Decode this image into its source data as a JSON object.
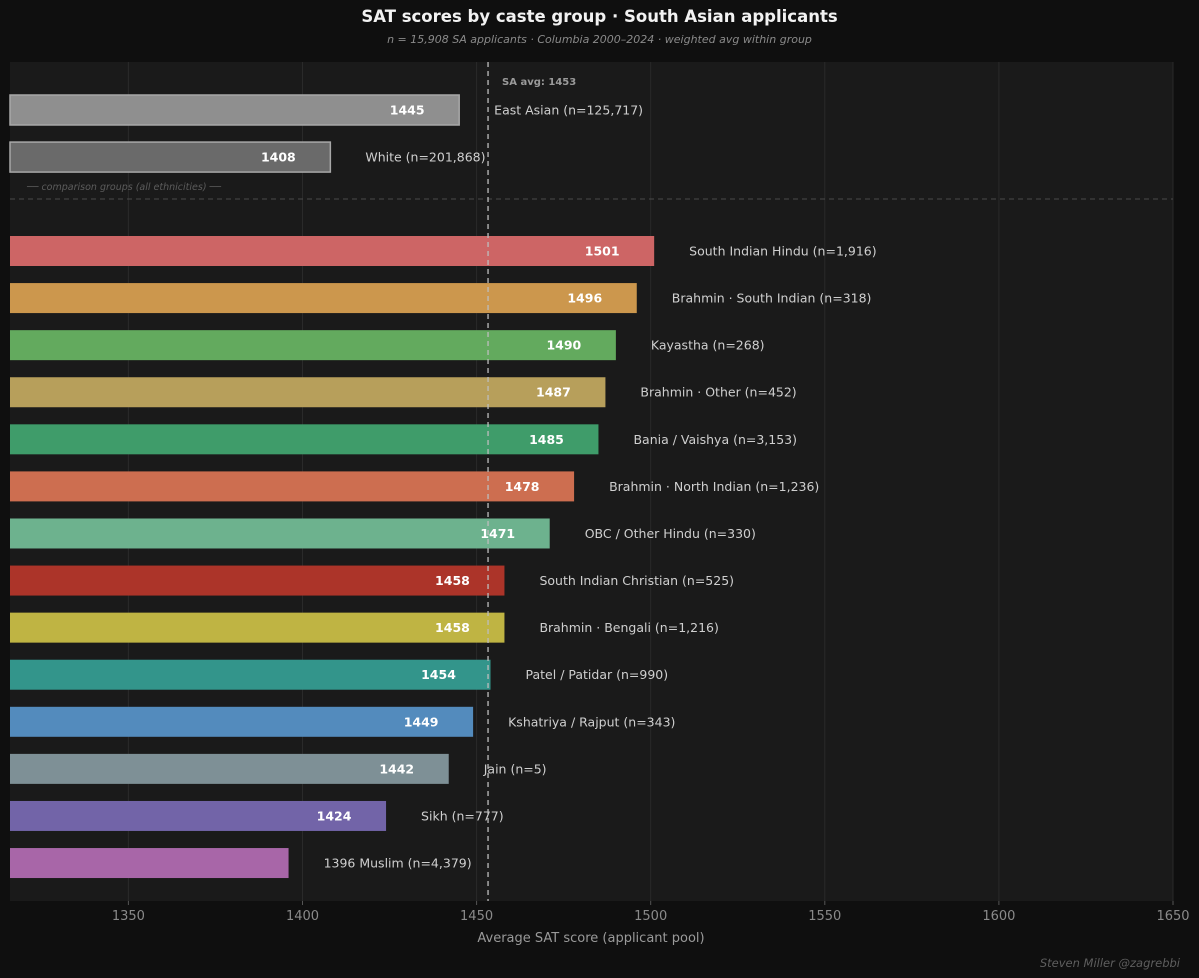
{
  "chart_data": {
    "type": "bar",
    "orientation": "horizontal",
    "title": "SAT scores by caste group · South Asian applicants",
    "subtitle": "n = 15,908 SA applicants · Columbia 2000–2024 · weighted avg within group",
    "xlabel": "Average SAT score (applicant pool)",
    "ylabel": "",
    "xlim": [
      1316,
      1650
    ],
    "xticks": [
      1350,
      1400,
      1450,
      1500,
      1550,
      1600,
      1650
    ],
    "reference_line": {
      "value": 1453,
      "label": "SA avg: 1453"
    },
    "comparison_note": "── comparison groups (all ethnicities) ──",
    "comparison_groups": [
      {
        "label": "East Asian  (n=125,717)",
        "value": 1445,
        "value_label": "1445",
        "color": "#8f8f8f"
      },
      {
        "label": "White  (n=201,868)",
        "value": 1408,
        "value_label": "1408",
        "color": "#6a6a6a"
      }
    ],
    "groups": [
      {
        "label": "South Indian Hindu  (n=1,916)",
        "value": 1501,
        "value_label": "1501",
        "color": "#cd6565"
      },
      {
        "label": "Brahmin · South Indian  (n=318)",
        "value": 1496,
        "value_label": "1496",
        "color": "#cc974d"
      },
      {
        "label": "Kayastha  (n=268)",
        "value": 1490,
        "value_label": "1490",
        "color": "#63aa5e"
      },
      {
        "label": "Brahmin · Other  (n=452)",
        "value": 1487,
        "value_label": "1487",
        "color": "#b79f5b"
      },
      {
        "label": "Bania / Vaishya  (n=3,153)",
        "value": 1485,
        "value_label": "1485",
        "color": "#3f9c6a"
      },
      {
        "label": "Brahmin · North Indian  (n=1,236)",
        "value": 1478,
        "value_label": "1478",
        "color": "#cd6e50"
      },
      {
        "label": "OBC / Other Hindu  (n=330)",
        "value": 1471,
        "value_label": "1471",
        "color": "#6db28e"
      },
      {
        "label": "South Indian Christian  (n=525)",
        "value": 1458,
        "value_label": "1458",
        "color": "#ac3429"
      },
      {
        "label": "Brahmin · Bengali  (n=1,216)",
        "value": 1458,
        "value_label": "1458",
        "color": "#bfb443"
      },
      {
        "label": "Patel / Patidar  (n=990)",
        "value": 1454,
        "value_label": "1454",
        "color": "#33958b"
      },
      {
        "label": "Kshatriya / Rajput  (n=343)",
        "value": 1449,
        "value_label": "1449",
        "color": "#538bbd"
      },
      {
        "label": "Jain  (n=5)",
        "value": 1442,
        "value_label": "1442",
        "color": "#7e9096"
      },
      {
        "label": "Sikh  (n=777)",
        "value": 1424,
        "value_label": "1424",
        "color": "#7264a8"
      },
      {
        "label": "1396  Muslim  (n=4,379)",
        "value": 1396,
        "value_label": "",
        "color": "#a866a8"
      }
    ]
  },
  "credit": "Steven Miller @zagrebbi"
}
